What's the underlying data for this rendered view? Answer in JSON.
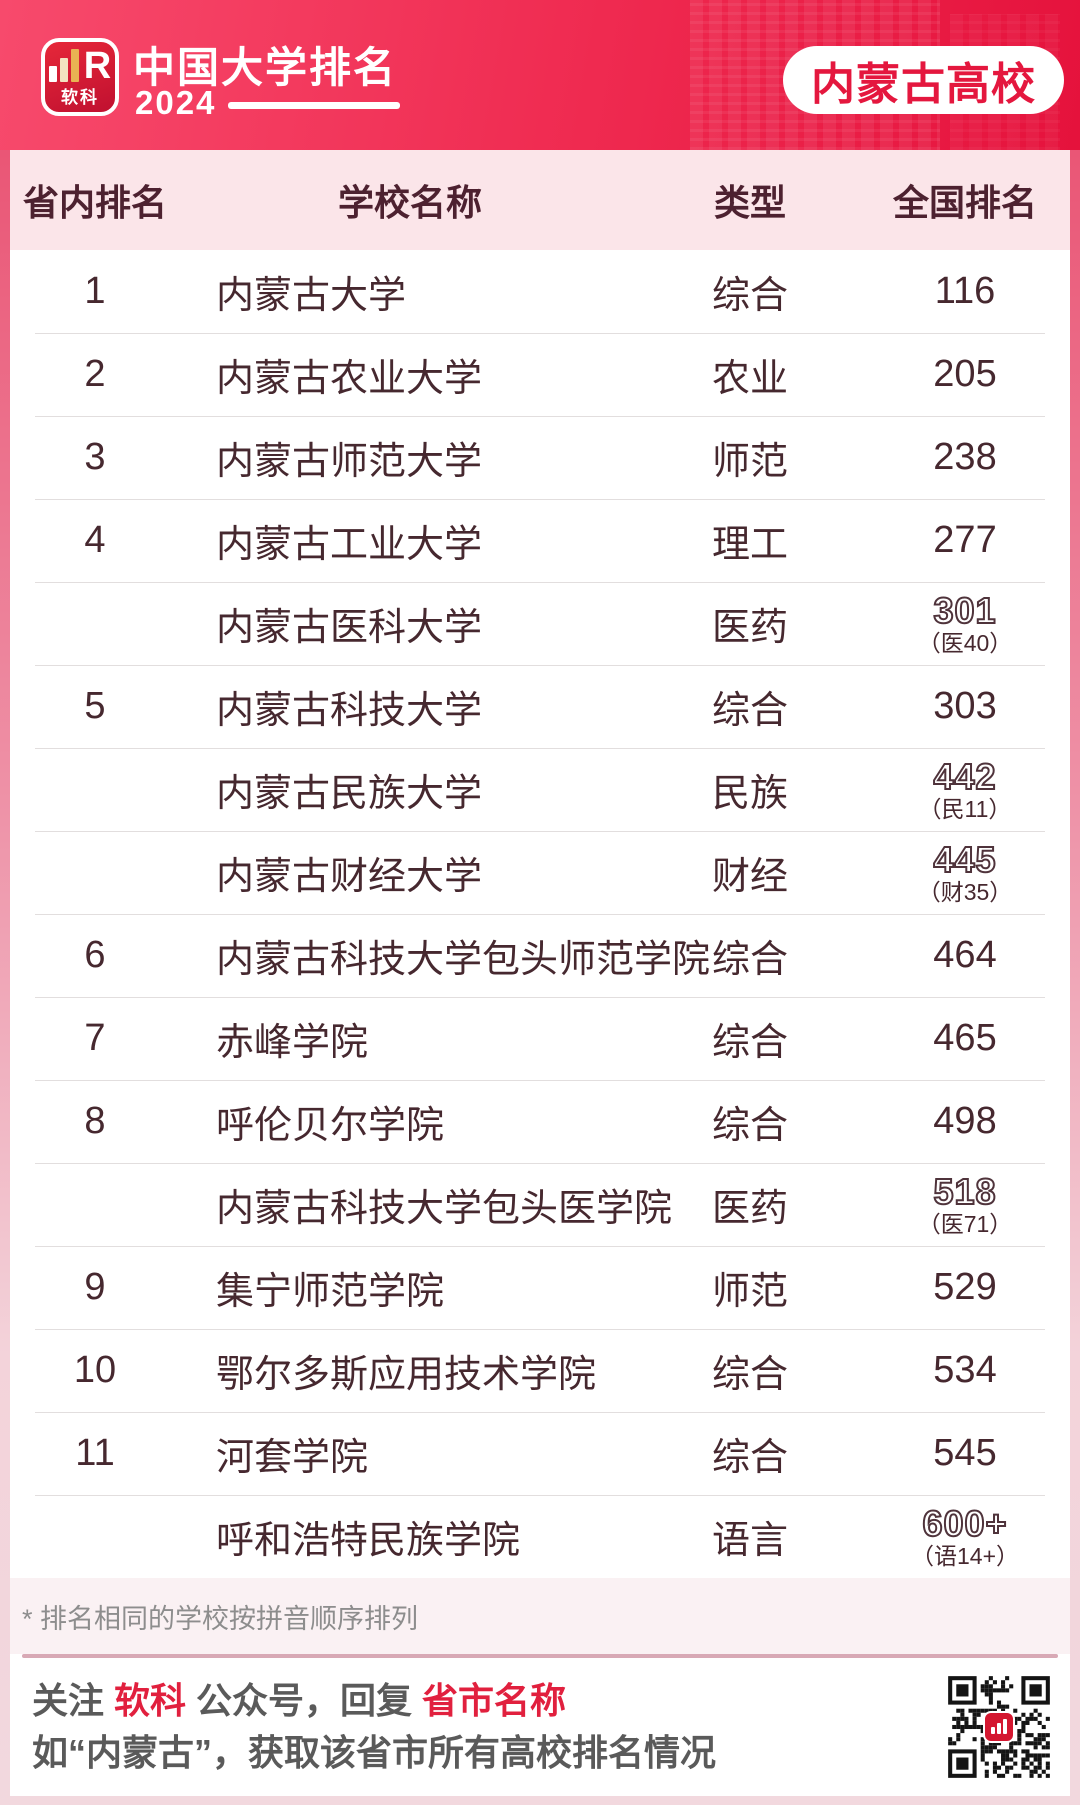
{
  "header": {
    "logo_mark": "R",
    "logo_text": "软科",
    "title": "中国大学排名",
    "year": "2024",
    "badge": "内蒙古高校"
  },
  "table": {
    "columns": [
      "省内排名",
      "学校名称",
      "类型",
      "全国排名"
    ],
    "rows": [
      {
        "rank": "1",
        "name": "内蒙古大学",
        "type": "综合",
        "national": "116"
      },
      {
        "rank": "2",
        "name": "内蒙古农业大学",
        "type": "农业",
        "national": "205"
      },
      {
        "rank": "3",
        "name": "内蒙古师范大学",
        "type": "师范",
        "national": "238"
      },
      {
        "rank": "4",
        "name": "内蒙古工业大学",
        "type": "理工",
        "national": "277"
      },
      {
        "rank": "",
        "name": "内蒙古医科大学",
        "type": "医药",
        "national": "301",
        "national_note": "（医40）",
        "outlined": true
      },
      {
        "rank": "5",
        "name": "内蒙古科技大学",
        "type": "综合",
        "national": "303"
      },
      {
        "rank": "",
        "name": "内蒙古民族大学",
        "type": "民族",
        "national": "442",
        "national_note": "（民11）",
        "outlined": true
      },
      {
        "rank": "",
        "name": "内蒙古财经大学",
        "type": "财经",
        "national": "445",
        "national_note": "（财35）",
        "outlined": true
      },
      {
        "rank": "6",
        "name": "内蒙古科技大学包头师范学院",
        "type": "综合",
        "national": "464"
      },
      {
        "rank": "7",
        "name": "赤峰学院",
        "type": "综合",
        "national": "465"
      },
      {
        "rank": "8",
        "name": "呼伦贝尔学院",
        "type": "综合",
        "national": "498"
      },
      {
        "rank": "",
        "name": "内蒙古科技大学包头医学院",
        "type": "医药",
        "national": "518",
        "national_note": "（医71）",
        "outlined": true
      },
      {
        "rank": "9",
        "name": "集宁师范学院",
        "type": "师范",
        "national": "529"
      },
      {
        "rank": "10",
        "name": "鄂尔多斯应用技术学院",
        "type": "综合",
        "national": "534"
      },
      {
        "rank": "11",
        "name": "河套学院",
        "type": "综合",
        "national": "545"
      },
      {
        "rank": "",
        "name": "呼和浩特民族学院",
        "type": "语言",
        "national": "600+",
        "national_note": "（语14+）",
        "outlined": true
      }
    ]
  },
  "footnote": "* 排名相同的学校按拼音顺序排列",
  "footer": {
    "follow": "关注 ",
    "brand": "软科",
    "middle": " 公众号，回复 ",
    "keyword": "省市名称",
    "line2": "如“内蒙古”，获取该省市所有高校排名情况"
  },
  "colors": {
    "brand_red": "#e5123c",
    "hero_gradient_start": "#f74a6c",
    "badge_text": "#e4173e",
    "table_header_bg": "#fbe5e9",
    "table_text": "#46282f",
    "outline_stroke": "#4f333b",
    "rose_divider": "#d8a9b5",
    "footer_gray": "#5a5a5a",
    "footer_red": "#e1203e"
  }
}
